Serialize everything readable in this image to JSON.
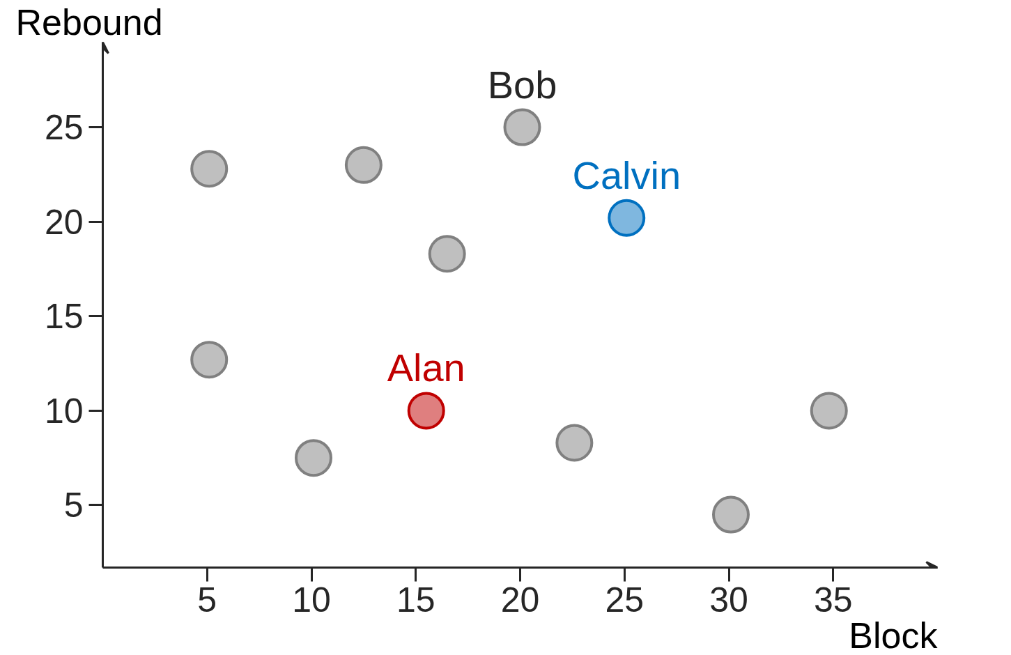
{
  "chart_data": {
    "type": "scatter",
    "xlabel": "Block",
    "ylabel": "Rebound",
    "xlim": [
      0,
      40
    ],
    "ylim": [
      1.7,
      29.5
    ],
    "xticks": [
      5,
      10,
      15,
      20,
      25,
      30,
      35
    ],
    "yticks": [
      5,
      10,
      15,
      20,
      25
    ],
    "grid": false,
    "marker": "circle",
    "series": [
      {
        "color": "#808080",
        "x": [
          5.1,
          12.5,
          16.5,
          5.1,
          10.1,
          22.6,
          30.1,
          34.8
        ],
        "values": [
          22.8,
          23.0,
          18.3,
          12.7,
          7.5,
          8.3,
          4.5,
          10.0
        ]
      },
      {
        "name": "Bob",
        "color": "#808080",
        "x": [
          20.1
        ],
        "values": [
          25.0
        ]
      },
      {
        "name": "Alan",
        "color": "#c00000",
        "x": [
          15.5
        ],
        "values": [
          10.0
        ]
      },
      {
        "name": "Calvin",
        "color": "#0070c0",
        "x": [
          25.1
        ],
        "values": [
          20.2
        ]
      }
    ]
  }
}
